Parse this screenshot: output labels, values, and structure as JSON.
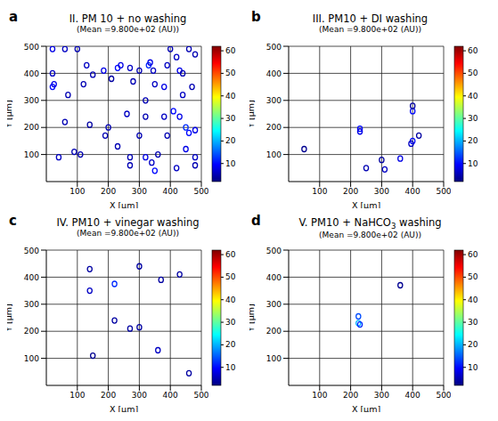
{
  "chart_data": [
    {
      "type": "scatter",
      "panel": "a",
      "title": "II. PM 10 + no washing",
      "subtitle": "(Mean =9.800e+02 (AU))",
      "x_label": "X [µm]",
      "y_label": "Y [µm]",
      "xlim": [
        0,
        500
      ],
      "ylim": [
        0,
        500
      ],
      "xticks": [
        100,
        200,
        300,
        400,
        500
      ],
      "yticks": [
        100,
        200,
        300,
        400,
        500
      ],
      "grid": true,
      "marker": "circle",
      "x": [
        20,
        60,
        20,
        25,
        100,
        130,
        150,
        185,
        230,
        240,
        270,
        300,
        330,
        335,
        345,
        390,
        400,
        420,
        430,
        440,
        460,
        480,
        20,
        70,
        120,
        210,
        280,
        350,
        320,
        380,
        440,
        470,
        410,
        430,
        450,
        460,
        480,
        480,
        450,
        380,
        390,
        320,
        260,
        300,
        200,
        190,
        360,
        350,
        340,
        320,
        110,
        40,
        90,
        60,
        140,
        230,
        270,
        480,
        420,
        270
      ],
      "y": [
        490,
        490,
        350,
        360,
        490,
        430,
        395,
        410,
        420,
        430,
        420,
        410,
        430,
        440,
        410,
        430,
        490,
        460,
        410,
        400,
        490,
        470,
        400,
        320,
        360,
        380,
        370,
        360,
        300,
        350,
        320,
        350,
        260,
        240,
        200,
        180,
        190,
        90,
        120,
        240,
        170,
        240,
        250,
        170,
        200,
        170,
        100,
        40,
        70,
        90,
        100,
        90,
        110,
        220,
        210,
        130,
        90,
        60,
        50,
        60
      ],
      "values": [
        8,
        6,
        10,
        8,
        5,
        6,
        5,
        8,
        10,
        8,
        6,
        5,
        12,
        8,
        6,
        6,
        5,
        6,
        8,
        5,
        5,
        5,
        6,
        5,
        5,
        4,
        5,
        6,
        5,
        8,
        6,
        5,
        10,
        8,
        12,
        10,
        8,
        6,
        8,
        6,
        5,
        5,
        6,
        5,
        5,
        5,
        5,
        10,
        6,
        8,
        5,
        6,
        5,
        5,
        4,
        5,
        5,
        5,
        6,
        5
      ],
      "colorbar": {
        "range": [
          2,
          62
        ],
        "ticks": [
          10,
          20,
          30,
          40,
          50,
          60
        ]
      }
    },
    {
      "type": "scatter",
      "panel": "b",
      "title": "III. PM10 + DI washing",
      "subtitle": "(Mean =9.800e+02 (AU))",
      "x_label": "X [µm]",
      "y_label": "Y [µm]",
      "xlim": [
        0,
        500
      ],
      "ylim": [
        0,
        500
      ],
      "xticks": [
        100,
        200,
        300,
        400,
        500
      ],
      "yticks": [
        100,
        200,
        300,
        400,
        500
      ],
      "grid": true,
      "marker": "circle",
      "x": [
        230,
        230,
        400,
        400,
        395,
        360,
        310,
        250,
        420,
        50,
        400,
        300
      ],
      "y": [
        195,
        185,
        260,
        150,
        140,
        85,
        45,
        50,
        170,
        120,
        280,
        80
      ],
      "values": [
        10,
        8,
        10,
        10,
        6,
        8,
        6,
        5,
        4,
        3,
        4,
        4
      ],
      "colorbar": {
        "range": [
          2,
          62
        ],
        "ticks": [
          10,
          20,
          30,
          40,
          50,
          60
        ]
      }
    },
    {
      "type": "scatter",
      "panel": "c",
      "title": "IV. PM10 + vinegar washing",
      "subtitle": "(Mean =9.800e+02 (AU))",
      "x_label": "X [µm]",
      "y_label": "Y [µm]",
      "xlim": [
        0,
        500
      ],
      "ylim": [
        0,
        500
      ],
      "xticks": [
        100,
        200,
        300,
        400,
        500
      ],
      "yticks": [
        100,
        200,
        300,
        400,
        500
      ],
      "grid": true,
      "marker": "circle",
      "x": [
        220,
        140,
        140,
        300,
        270,
        360,
        370,
        430,
        220,
        460,
        150,
        300
      ],
      "y": [
        375,
        350,
        430,
        440,
        210,
        130,
        390,
        410,
        240,
        45,
        110,
        215
      ],
      "values": [
        12,
        6,
        4,
        4,
        4,
        6,
        4,
        4,
        4,
        4,
        3,
        4
      ],
      "colorbar": {
        "range": [
          2,
          62
        ],
        "ticks": [
          10,
          20,
          30,
          40,
          50,
          60
        ]
      }
    },
    {
      "type": "scatter",
      "panel": "d",
      "title": "V. PM10 + NaHCO3 washing",
      "subtitle": "(Mean =9.800e+02 (AU))",
      "x_label": "X [µm]",
      "y_label": "Y [µm]",
      "xlim": [
        0,
        500
      ],
      "ylim": [
        0,
        500
      ],
      "xticks": [
        100,
        200,
        300,
        400,
        500
      ],
      "yticks": [
        100,
        200,
        300,
        400,
        500
      ],
      "grid": true,
      "marker": "circle",
      "x": [
        225,
        225,
        230,
        360
      ],
      "y": [
        255,
        230,
        225,
        370
      ],
      "values": [
        14,
        20,
        12,
        3
      ],
      "colorbar": {
        "range": [
          2,
          62
        ],
        "ticks": [
          10,
          20,
          30,
          40,
          50,
          60
        ]
      }
    }
  ]
}
